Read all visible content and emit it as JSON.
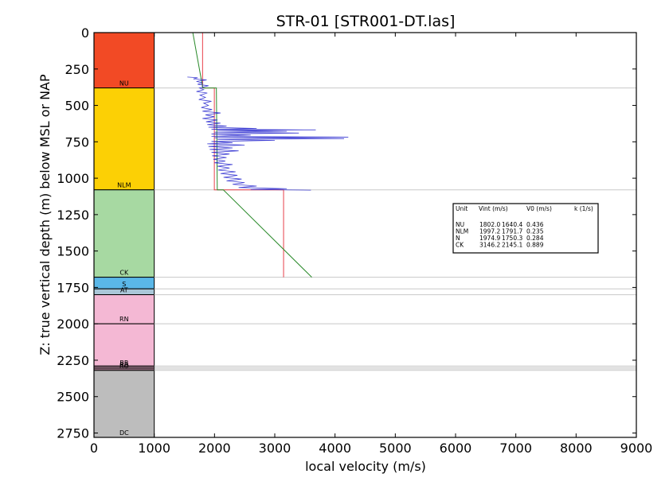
{
  "chart_data": {
    "type": "line",
    "title": "STR-01 [STR001-DT.las]",
    "xlabel": "local velocity (m/s)",
    "ylabel": "Z: true vertical depth (m) below MSL or NAP",
    "xlim": [
      0,
      9000
    ],
    "ylim": [
      2780,
      0
    ],
    "x_ticks": [
      "0",
      "1000",
      "2000",
      "3000",
      "4000",
      "5000",
      "6000",
      "7000",
      "8000",
      "9000"
    ],
    "y_ticks": [
      "0",
      "250",
      "500",
      "750",
      "1000",
      "1250",
      "1500",
      "1750",
      "2000",
      "2250",
      "2500",
      "2750"
    ],
    "grid": false,
    "stratigraphy_column": {
      "x_range": [
        0,
        1000
      ],
      "units": [
        {
          "label": "NU",
          "top": 0,
          "base": 380,
          "color": "#f24a25"
        },
        {
          "label": "NLM",
          "top": 380,
          "base": 1080,
          "color": "#fcd005"
        },
        {
          "label": "CK",
          "top": 1080,
          "base": 1680,
          "color": "#a7d9a2"
        },
        {
          "label": "S",
          "top": 1680,
          "base": 1760,
          "color": "#5ab7e8"
        },
        {
          "label": "AT",
          "top": 1760,
          "base": 1800,
          "color": "#aac7d8"
        },
        {
          "label": "RN",
          "top": 1800,
          "base": 2000,
          "color": "#f4b8d4"
        },
        {
          "label": "",
          "top": 2000,
          "base": 2290,
          "color": "#f4b8d4"
        },
        {
          "label": "BB",
          "top": 2290,
          "base": 2300,
          "color": "#f4b8d4"
        },
        {
          "label": "RB",
          "top": 2300,
          "base": 2310,
          "color": "#f4b8d4"
        },
        {
          "label": "RO",
          "top": 2310,
          "base": 2320,
          "color": "#f4b8d4"
        },
        {
          "label": "DC",
          "top": 2320,
          "base": 2780,
          "color": "#bdbdbd"
        }
      ],
      "boundary_lines": [
        380,
        1080,
        1680,
        1760,
        1800,
        2000,
        2290,
        2300,
        2310,
        2320,
        2780
      ]
    },
    "series": [
      {
        "style": "interval_velocity_steps",
        "color": "#e8404a",
        "segments": [
          {
            "x": 1802.0,
            "top": 0,
            "base": 380
          },
          {
            "x": 1997.2,
            "top": 380,
            "base": 1080
          },
          {
            "x": 3146.2,
            "top": 1080,
            "base": 1680
          }
        ]
      },
      {
        "style": "linear_v0_k_trend",
        "color": "#2a8a2a",
        "segments": [
          {
            "points": [
              [
                1640,
                0
              ],
              [
                1806,
                380
              ]
            ]
          },
          {
            "points": [
              [
                2031,
                380
              ],
              [
                2046,
                1080
              ]
            ]
          },
          {
            "points": [
              [
                2147,
                1080
              ],
              [
                3614,
                1680
              ]
            ]
          }
        ]
      },
      {
        "style": "sonic_log",
        "color": "#1f1fcc",
        "points": [
          [
            1550,
            305
          ],
          [
            1720,
            310
          ],
          [
            1650,
            318
          ],
          [
            1870,
            325
          ],
          [
            1700,
            335
          ],
          [
            1800,
            345
          ],
          [
            1720,
            355
          ],
          [
            1900,
            365
          ],
          [
            1750,
            380
          ],
          [
            1820,
            392
          ],
          [
            1700,
            405
          ],
          [
            1880,
            415
          ],
          [
            1760,
            430
          ],
          [
            1850,
            445
          ],
          [
            1740,
            460
          ],
          [
            1950,
            472
          ],
          [
            1820,
            485
          ],
          [
            1900,
            500
          ],
          [
            1780,
            515
          ],
          [
            1960,
            528
          ],
          [
            1800,
            540
          ],
          [
            2100,
            552
          ],
          [
            1850,
            565
          ],
          [
            2000,
            578
          ],
          [
            1800,
            590
          ],
          [
            2050,
            600
          ],
          [
            1860,
            612
          ],
          [
            2100,
            622
          ],
          [
            1880,
            632
          ],
          [
            2200,
            642
          ],
          [
            1900,
            650
          ],
          [
            2700,
            658
          ],
          [
            1950,
            664
          ],
          [
            3680,
            668
          ],
          [
            2050,
            672
          ],
          [
            3200,
            678
          ],
          [
            2000,
            684
          ],
          [
            3400,
            690
          ],
          [
            1950,
            696
          ],
          [
            2600,
            704
          ],
          [
            1950,
            712
          ],
          [
            4220,
            718
          ],
          [
            2000,
            722
          ],
          [
            4150,
            728
          ],
          [
            2050,
            734
          ],
          [
            3000,
            740
          ],
          [
            1950,
            748
          ],
          [
            2300,
            756
          ],
          [
            1880,
            764
          ],
          [
            2500,
            772
          ],
          [
            1900,
            782
          ],
          [
            2300,
            792
          ],
          [
            1920,
            802
          ],
          [
            2400,
            812
          ],
          [
            1950,
            822
          ],
          [
            2250,
            834
          ],
          [
            1960,
            846
          ],
          [
            2200,
            858
          ],
          [
            1980,
            870
          ],
          [
            2180,
            882
          ],
          [
            2000,
            894
          ],
          [
            2300,
            906
          ],
          [
            2050,
            918
          ],
          [
            2250,
            930
          ],
          [
            2060,
            944
          ],
          [
            2350,
            956
          ],
          [
            2100,
            968
          ],
          [
            2380,
            980
          ],
          [
            2150,
            994
          ],
          [
            2450,
            1006
          ],
          [
            2200,
            1018
          ],
          [
            2500,
            1030
          ],
          [
            2300,
            1042
          ],
          [
            2700,
            1054
          ],
          [
            2400,
            1064
          ],
          [
            3200,
            1072
          ],
          [
            2600,
            1078
          ],
          [
            3600,
            1082
          ]
        ]
      }
    ],
    "legend_table": {
      "position": "right",
      "header": [
        "Unit",
        "Vint (m/s)",
        "V0 (m/s)",
        "k (1/s)"
      ],
      "rows": [
        [
          "NU",
          "1802.0",
          "1640.4",
          "0.436"
        ],
        [
          "NLM",
          "1997.2",
          "1791.7",
          "0.235"
        ],
        [
          "N",
          "1974.9",
          "1750.3",
          "0.284"
        ],
        [
          "CK",
          "3146.2",
          "2145.1",
          "0.889"
        ]
      ]
    }
  }
}
